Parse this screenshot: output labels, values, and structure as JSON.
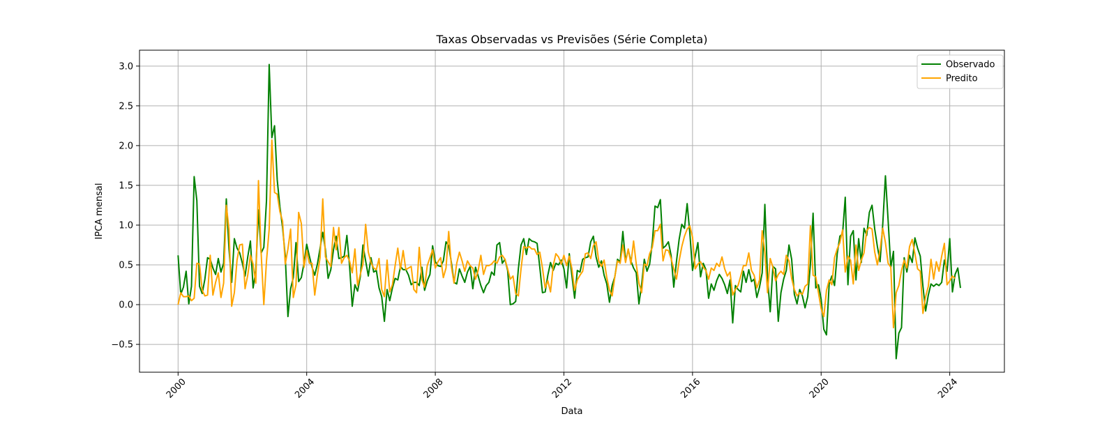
{
  "chart_data": {
    "type": "line",
    "title": "Taxas Observadas vs Previsões (Série Completa)",
    "xlabel": "Data",
    "ylabel": "IPCA mensal",
    "xlim": [
      1998.8,
      2025.7
    ],
    "ylim": [
      -0.85,
      3.2
    ],
    "x_ticks": [
      2000,
      2004,
      2008,
      2012,
      2016,
      2020,
      2024
    ],
    "y_ticks": [
      -0.5,
      0.0,
      0.5,
      1.0,
      1.5,
      2.0,
      2.5,
      3.0
    ],
    "y_tick_labels": [
      "−0.5",
      "0.0",
      "0.5",
      "1.0",
      "1.5",
      "2.0",
      "2.5",
      "3.0"
    ],
    "grid": true,
    "legend_position": "top-right",
    "x_start_year": 2000,
    "series": [
      {
        "name": "Observado",
        "color": "#008000",
        "values": [
          0.62,
          0.13,
          0.22,
          0.42,
          0.01,
          0.23,
          1.61,
          1.31,
          0.23,
          0.14,
          0.32,
          0.59,
          0.57,
          0.46,
          0.38,
          0.58,
          0.41,
          0.52,
          1.33,
          0.7,
          0.28,
          0.83,
          0.71,
          0.65,
          0.52,
          0.36,
          0.6,
          0.8,
          0.21,
          0.42,
          1.19,
          0.65,
          0.72,
          1.31,
          3.02,
          2.1,
          2.25,
          1.57,
          1.23,
          0.97,
          0.61,
          -0.15,
          0.2,
          0.34,
          0.78,
          0.29,
          0.34,
          0.52,
          0.76,
          0.61,
          0.47,
          0.37,
          0.51,
          0.71,
          0.91,
          0.69,
          0.33,
          0.44,
          0.69,
          0.86,
          0.58,
          0.59,
          0.61,
          0.87,
          0.49,
          -0.02,
          0.25,
          0.17,
          0.35,
          0.75,
          0.55,
          0.36,
          0.59,
          0.41,
          0.43,
          0.21,
          0.1,
          -0.21,
          0.19,
          0.05,
          0.21,
          0.33,
          0.31,
          0.48,
          0.44,
          0.44,
          0.37,
          0.25,
          0.28,
          0.28,
          0.24,
          0.47,
          0.18,
          0.3,
          0.38,
          0.74,
          0.54,
          0.49,
          0.48,
          0.55,
          0.79,
          0.74,
          0.53,
          0.28,
          0.26,
          0.45,
          0.36,
          0.28,
          0.41,
          0.48,
          0.2,
          0.47,
          0.36,
          0.24,
          0.15,
          0.24,
          0.28,
          0.41,
          0.37,
          0.75,
          0.78,
          0.52,
          0.57,
          0.43,
          0.0,
          0.01,
          0.04,
          0.45,
          0.75,
          0.83,
          0.63,
          0.83,
          0.8,
          0.79,
          0.77,
          0.47,
          0.15,
          0.16,
          0.37,
          0.53,
          0.43,
          0.52,
          0.5,
          0.56,
          0.45,
          0.21,
          0.64,
          0.36,
          0.08,
          0.43,
          0.41,
          0.57,
          0.59,
          0.6,
          0.79,
          0.86,
          0.6,
          0.47,
          0.55,
          0.37,
          0.26,
          0.03,
          0.24,
          0.35,
          0.57,
          0.54,
          0.92,
          0.55,
          0.69,
          0.55,
          0.46,
          0.4,
          0.01,
          0.25,
          0.57,
          0.42,
          0.51,
          0.78,
          1.24,
          1.22,
          1.32,
          0.71,
          0.74,
          0.79,
          0.62,
          0.22,
          0.54,
          0.82,
          1.01,
          0.96,
          1.27,
          0.9,
          0.43,
          0.61,
          0.78,
          0.35,
          0.52,
          0.44,
          0.08,
          0.26,
          0.18,
          0.3,
          0.38,
          0.33,
          0.25,
          0.14,
          0.31,
          -0.23,
          0.24,
          0.19,
          0.16,
          0.42,
          0.28,
          0.44,
          0.29,
          0.32,
          0.09,
          0.22,
          0.4,
          1.26,
          0.33,
          -0.09,
          0.48,
          0.45,
          -0.21,
          0.15,
          0.32,
          0.43,
          0.75,
          0.57,
          0.13,
          0.01,
          0.19,
          0.11,
          -0.04,
          0.1,
          0.51,
          1.15,
          0.21,
          0.25,
          0.07,
          -0.31,
          -0.38,
          0.26,
          0.36,
          0.24,
          0.64,
          0.86,
          0.89,
          1.35,
          0.25,
          0.86,
          0.93,
          0.31,
          0.83,
          0.53,
          0.96,
          0.87,
          1.16,
          1.25,
          0.95,
          0.73,
          0.54,
          1.01,
          1.62,
          1.06,
          0.47,
          0.67,
          -0.68,
          -0.36,
          -0.29,
          0.59,
          0.41,
          0.62,
          0.53,
          0.84,
          0.71,
          0.61,
          0.23,
          -0.08,
          0.12,
          0.26,
          0.23,
          0.26,
          0.24,
          0.28,
          0.56,
          0.42,
          0.83,
          0.16,
          0.38,
          0.46,
          0.21
        ]
      },
      {
        "name": "Predito",
        "color": "#FFA500",
        "values": [
          0.0,
          0.15,
          0.1,
          0.1,
          0.11,
          0.05,
          0.08,
          0.52,
          0.51,
          0.18,
          0.11,
          0.12,
          0.62,
          0.12,
          0.28,
          0.4,
          0.09,
          0.27,
          1.25,
          0.95,
          -0.02,
          0.15,
          0.56,
          0.75,
          0.76,
          0.2,
          0.37,
          0.62,
          0.51,
          0.27,
          1.56,
          0.65,
          0.0,
          0.55,
          0.95,
          2.07,
          1.41,
          1.39,
          1.17,
          1.05,
          0.51,
          0.7,
          0.95,
          0.09,
          0.25,
          1.16,
          1.02,
          0.47,
          0.68,
          0.52,
          0.52,
          0.12,
          0.38,
          0.59,
          1.33,
          0.6,
          0.54,
          0.48,
          0.97,
          0.69,
          0.97,
          0.52,
          0.59,
          0.62,
          0.55,
          0.4,
          0.7,
          0.24,
          0.38,
          0.51,
          1.01,
          0.66,
          0.53,
          0.46,
          0.44,
          0.58,
          0.19,
          0.1,
          0.56,
          0.16,
          0.25,
          0.49,
          0.71,
          0.44,
          0.68,
          0.44,
          0.46,
          0.48,
          0.19,
          0.15,
          0.72,
          0.31,
          0.22,
          0.49,
          0.59,
          0.69,
          0.46,
          0.54,
          0.59,
          0.34,
          0.46,
          0.92,
          0.48,
          0.27,
          0.52,
          0.66,
          0.55,
          0.42,
          0.55,
          0.49,
          0.46,
          0.32,
          0.43,
          0.62,
          0.38,
          0.49,
          0.49,
          0.51,
          0.55,
          0.52,
          0.6,
          0.62,
          0.57,
          0.45,
          0.32,
          0.36,
          0.14,
          0.11,
          0.45,
          0.73,
          0.71,
          0.73,
          0.7,
          0.7,
          0.63,
          0.66,
          0.46,
          0.21,
          0.3,
          0.16,
          0.49,
          0.64,
          0.6,
          0.51,
          0.62,
          0.49,
          0.61,
          0.45,
          0.18,
          0.31,
          0.37,
          0.42,
          0.64,
          0.65,
          0.58,
          0.74,
          0.79,
          0.55,
          0.48,
          0.56,
          0.34,
          0.18,
          0.11,
          0.35,
          0.55,
          0.52,
          0.75,
          0.53,
          0.7,
          0.51,
          0.8,
          0.51,
          0.27,
          0.15,
          0.51,
          0.49,
          0.64,
          0.72,
          0.93,
          0.93,
          1.01,
          0.55,
          0.69,
          0.68,
          0.58,
          0.45,
          0.32,
          0.55,
          0.73,
          0.86,
          0.95,
          0.99,
          0.85,
          0.45,
          0.51,
          0.54,
          0.47,
          0.43,
          0.32,
          0.46,
          0.43,
          0.52,
          0.48,
          0.6,
          0.45,
          0.36,
          0.41,
          0.12,
          0.19,
          0.24,
          0.36,
          0.49,
          0.49,
          0.65,
          0.43,
          0.37,
          0.21,
          0.31,
          0.93,
          0.66,
          0.15,
          0.58,
          0.47,
          0.3,
          0.38,
          0.42,
          0.38,
          0.62,
          0.55,
          0.33,
          0.19,
          0.11,
          0.15,
          0.13,
          0.23,
          0.26,
          0.99,
          0.37,
          0.35,
          0.15,
          -0.05,
          -0.15,
          0.18,
          0.31,
          0.25,
          0.59,
          0.7,
          0.78,
          0.94,
          0.41,
          0.61,
          0.56,
          0.26,
          0.75,
          0.43,
          0.56,
          0.65,
          0.93,
          0.97,
          0.95,
          0.66,
          0.5,
          0.69,
          0.96,
          0.78,
          0.52,
          0.47,
          -0.29,
          0.15,
          0.24,
          0.43,
          0.56,
          0.46,
          0.73,
          0.82,
          0.64,
          0.45,
          0.42,
          -0.11,
          0.1,
          0.23,
          0.57,
          0.32,
          0.54,
          0.42,
          0.61,
          0.77,
          0.25,
          0.3,
          0.36,
          0.33
        ]
      }
    ]
  }
}
